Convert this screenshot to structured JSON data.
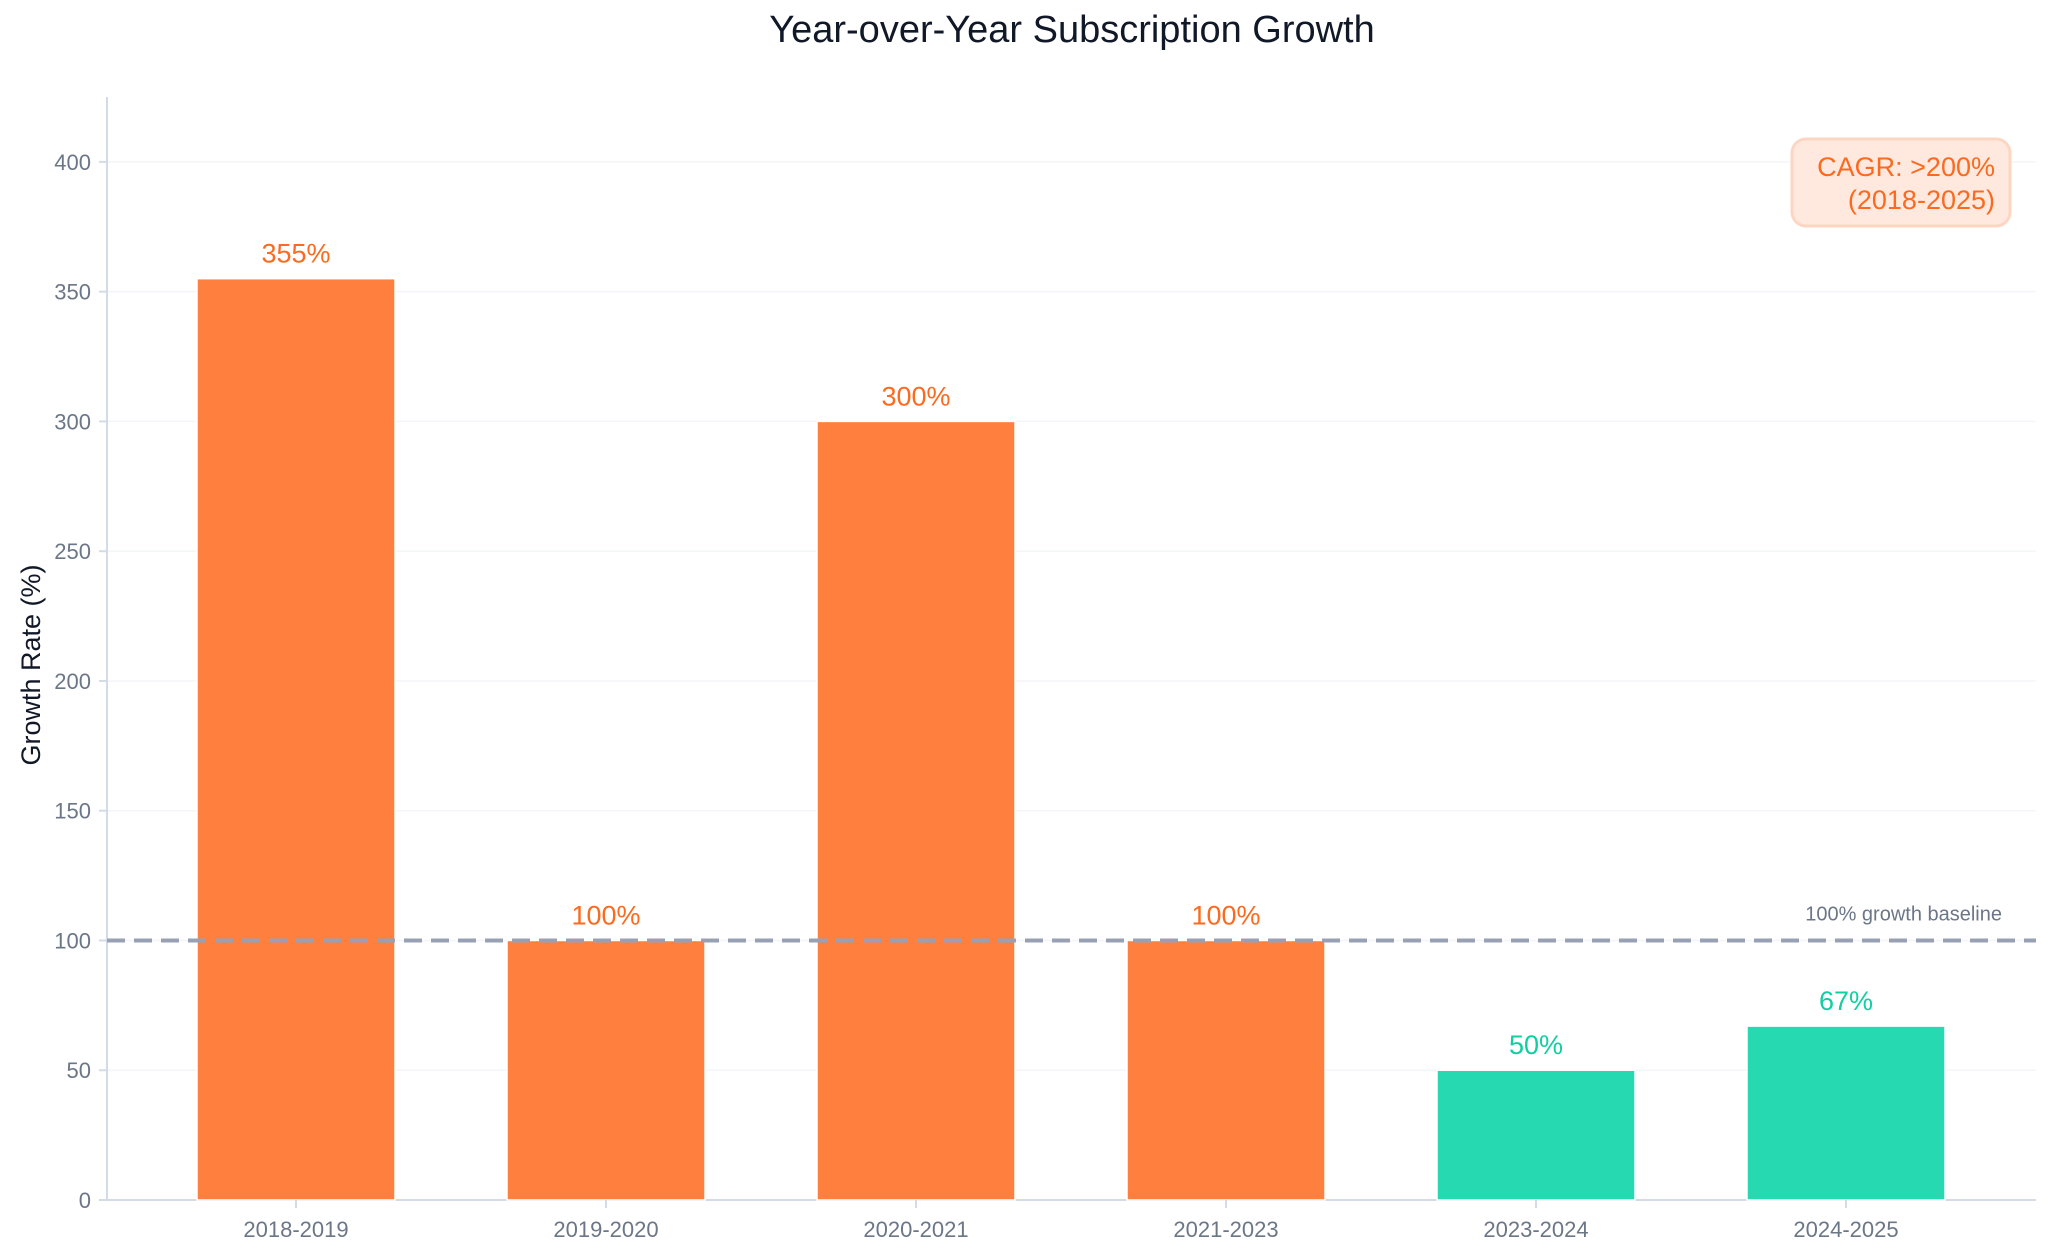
{
  "chart_data": {
    "type": "bar",
    "title": "Year-over-Year Subscription Growth",
    "xlabel": "",
    "ylabel": "Growth Rate (%)",
    "ylim": [
      0,
      425
    ],
    "yticks": [
      0,
      50,
      100,
      150,
      200,
      250,
      300,
      350,
      400
    ],
    "categories": [
      "2018-2019",
      "2019-2020",
      "2020-2021",
      "2021-2023",
      "2023-2024",
      "2024-2025"
    ],
    "values": [
      355,
      100,
      300,
      100,
      50,
      67
    ],
    "value_labels": [
      "355%",
      "100%",
      "300%",
      "100%",
      "50%",
      "67%"
    ],
    "bar_colors": [
      "#ff7f3e",
      "#ff7f3e",
      "#ff7f3e",
      "#ff7f3e",
      "#26d9b1",
      "#26d9b1"
    ],
    "label_colors": [
      "#fa6a1f",
      "#fa6a1f",
      "#fa6a1f",
      "#fa6a1f",
      "#10cfa2",
      "#10cfa2"
    ],
    "grid": true,
    "reference_line": {
      "value": 100,
      "label": "100% growth baseline",
      "color": "#98a1b3",
      "style": "dashed"
    },
    "annotation": {
      "lines": [
        "CAGR: >200%",
        "(2018-2025)"
      ],
      "placement": "top-right",
      "text_color": "#fa6a1f",
      "background": "#ffe9df",
      "border": "#fdd6c3"
    }
  },
  "colors": {
    "title": "#111827",
    "tick_text": "#6b7687",
    "axis_line": "#d3dbe6",
    "grid": "#f3f5f8"
  }
}
